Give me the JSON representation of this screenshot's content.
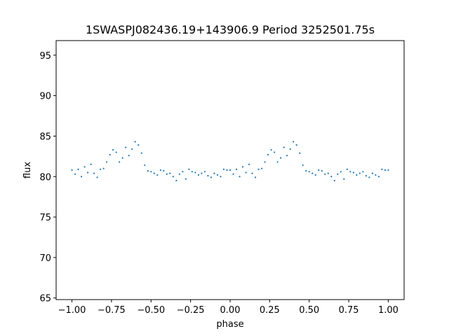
{
  "chart_data": {
    "type": "scatter",
    "title": "1SWASPJ082436.19+143906.9 Period 3252501.75s",
    "xlabel": "phase",
    "ylabel": "flux",
    "xlim": [
      -1.1,
      1.1
    ],
    "ylim": [
      64.8,
      96.8
    ],
    "x_ticks": [
      -1.0,
      -0.75,
      -0.5,
      -0.25,
      0.0,
      0.25,
      0.5,
      0.75,
      1.0
    ],
    "x_tick_labels": [
      "−1.00",
      "−0.75",
      "−0.50",
      "−0.25",
      "0.00",
      "0.25",
      "0.50",
      "0.75",
      "1.00"
    ],
    "y_ticks": [
      65,
      70,
      75,
      80,
      85,
      90,
      95
    ],
    "y_tick_labels": [
      "65",
      "70",
      "75",
      "80",
      "85",
      "90",
      "95"
    ],
    "grid": false,
    "marker_color": "#1f77b4",
    "series": [
      {
        "x": [
          -1.0,
          -0.98,
          -0.96,
          -0.94,
          -0.92,
          -0.9,
          -0.88,
          -0.86,
          -0.84,
          -0.82,
          -0.8,
          -0.78,
          -0.76,
          -0.74,
          -0.72,
          -0.7,
          -0.68,
          -0.66,
          -0.64,
          -0.62,
          -0.6,
          -0.58,
          -0.56,
          -0.54,
          -0.52,
          -0.5,
          -0.48,
          -0.46,
          -0.44,
          -0.42,
          -0.4,
          -0.38,
          -0.36,
          -0.34,
          -0.32,
          -0.3,
          -0.28,
          -0.26,
          -0.24,
          -0.22,
          -0.2,
          -0.18,
          -0.16,
          -0.14,
          -0.12,
          -0.1,
          -0.08,
          -0.06,
          -0.04,
          -0.02,
          0.0,
          0.02,
          0.04,
          0.06,
          0.08,
          0.1,
          0.12,
          0.14,
          0.16,
          0.18,
          0.2,
          0.22,
          0.24,
          0.26,
          0.28,
          0.3,
          0.32,
          0.34,
          0.36,
          0.38,
          0.4,
          0.42,
          0.44,
          0.46,
          0.48,
          0.5,
          0.52,
          0.54,
          0.56,
          0.58,
          0.6,
          0.62,
          0.64,
          0.66,
          0.68,
          0.7,
          0.72,
          0.74,
          0.76,
          0.78,
          0.8,
          0.82,
          0.84,
          0.86,
          0.88,
          0.9,
          0.92,
          0.94,
          0.96,
          0.98,
          1.0
        ],
        "y": [
          80.8,
          80.3,
          80.9,
          80.0,
          81.2,
          80.5,
          81.5,
          80.4,
          79.9,
          80.9,
          81.0,
          81.8,
          82.7,
          83.3,
          83.0,
          81.8,
          82.3,
          83.6,
          82.6,
          83.4,
          84.3,
          83.9,
          82.9,
          81.4,
          80.7,
          80.6,
          80.4,
          80.2,
          80.8,
          80.7,
          80.3,
          80.4,
          80.0,
          79.5,
          80.3,
          80.6,
          79.7,
          80.9,
          80.6,
          80.5,
          80.2,
          80.4,
          80.6,
          80.1,
          79.9,
          80.4,
          80.2,
          80.0,
          80.9,
          80.8,
          80.8,
          80.3,
          80.9,
          80.0,
          81.2,
          80.5,
          81.5,
          80.4,
          79.9,
          80.9,
          81.0,
          81.8,
          82.7,
          83.3,
          83.0,
          81.8,
          82.3,
          83.6,
          82.6,
          83.4,
          84.3,
          83.9,
          82.9,
          81.4,
          80.7,
          80.6,
          80.4,
          80.2,
          80.8,
          80.7,
          80.3,
          80.4,
          80.0,
          79.5,
          80.3,
          80.6,
          79.7,
          80.9,
          80.6,
          80.5,
          80.2,
          80.4,
          80.6,
          80.1,
          79.9,
          80.4,
          80.2,
          80.0,
          80.9,
          80.8,
          80.8
        ]
      }
    ]
  }
}
